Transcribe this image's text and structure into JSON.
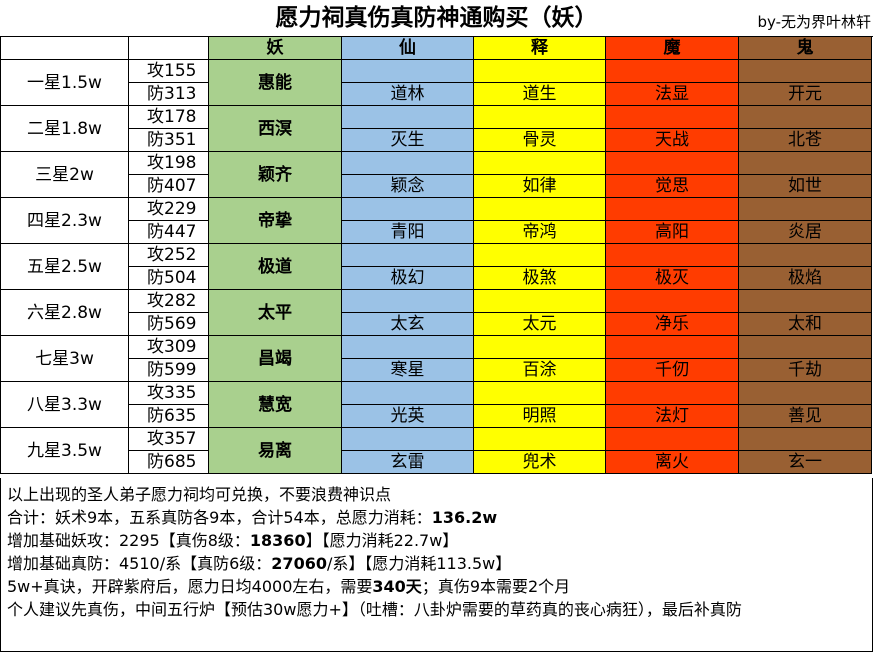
{
  "title": "愿力祠真伤真防神通购买（妖）",
  "byline": "by-无为界叶林轩",
  "headers": [
    "妖",
    "仙",
    "释",
    "魔",
    "鬼"
  ],
  "rows": [
    {
      "star": "一星1.5w",
      "atk": "攻155",
      "def": "防313",
      "yao": "惠能",
      "xian": "道林",
      "shi": "道生",
      "mo": "法显",
      "gui": "开元"
    },
    {
      "star": "二星1.8w",
      "atk": "攻178",
      "def": "防351",
      "yao": "西溟",
      "xian": "灭生",
      "shi": "骨灵",
      "mo": "天战",
      "gui": "北苍"
    },
    {
      "star": "三星2w",
      "atk": "攻198",
      "def": "防407",
      "yao": "颖齐",
      "xian": "颖念",
      "shi": "如律",
      "mo": "觉思",
      "gui": "如世"
    },
    {
      "star": "四星2.3w",
      "atk": "攻229",
      "def": "防447",
      "yao": "帝挚",
      "xian": "青阳",
      "shi": "帝鸿",
      "mo": "高阳",
      "gui": "炎居"
    },
    {
      "star": "五星2.5w",
      "atk": "攻252",
      "def": "防504",
      "yao": "极道",
      "xian": "极幻",
      "shi": "极煞",
      "mo": "极灭",
      "gui": "极焰"
    },
    {
      "star": "六星2.8w",
      "atk": "攻282",
      "def": "防569",
      "yao": "太平",
      "xian": "太玄",
      "shi": "太元",
      "mo": "净乐",
      "gui": "太和"
    },
    {
      "star": "七星3w",
      "atk": "攻309",
      "def": "防599",
      "yao": "昌竭",
      "xian": "寒星",
      "shi": "百涂",
      "mo": "千仞",
      "gui": "千劫"
    },
    {
      "star": "八星3.3w",
      "atk": "攻335",
      "def": "防635",
      "yao": "慧宽",
      "xian": "光英",
      "shi": "明照",
      "mo": "法灯",
      "gui": "善见"
    },
    {
      "star": "九星3.5w",
      "atk": "攻357",
      "def": "防685",
      "yao": "易离",
      "xian": "玄雷",
      "shi": "兜术",
      "mo": "离火",
      "gui": "玄一"
    }
  ],
  "notes": {
    "line1": "以上出现的圣人弟子愿力祠均可兑换，不要浪费神识点",
    "line2_a": "合计：妖术9本，五系真防各9本，合计54本，总愿力消耗：",
    "line2_b": "136.2w",
    "line3_a": "增加基础妖攻：2295【真伤8级：",
    "line3_b": "18360",
    "line3_c": "】【愿力消耗22.7w】",
    "line4_a": "增加基础真防：4510/系【真防6级：",
    "line4_b": "27060",
    "line4_c": "/系】【愿力消耗113.5w】",
    "line5_a": "5w+真诀，开辟紫府后，愿力日均4000左右，需要",
    "line5_b": "340天",
    "line5_c": "；真伤9本需要2个月",
    "line6": "个人建议先真伤，中间五行炉【预估30w愿力+】（吐槽：八卦炉需要的草药真的丧心病狂），最后补真防"
  }
}
